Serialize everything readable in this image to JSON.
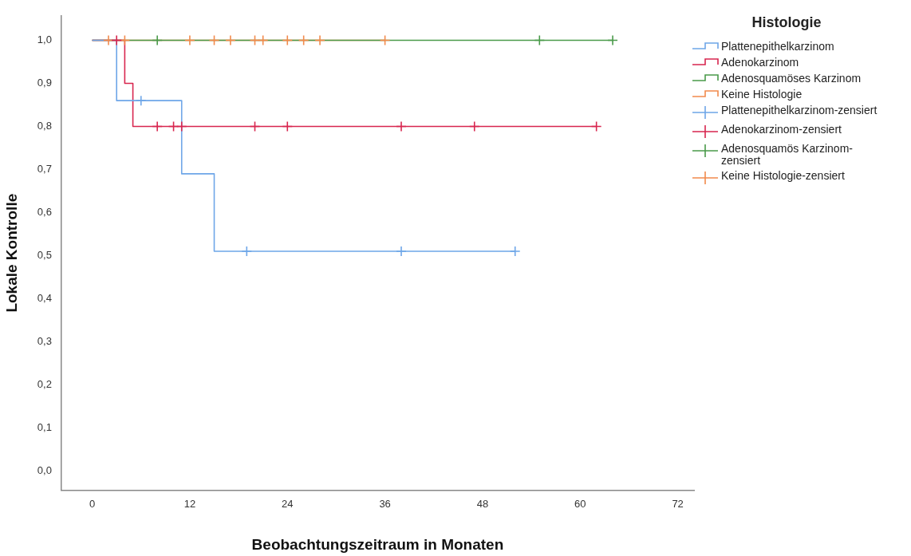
{
  "chart_data": {
    "type": "step",
    "xlabel": "Beobachtungszeitraum in Monaten",
    "ylabel": "Lokale Kontrolle",
    "legend_title": "Histologie",
    "legend": "right",
    "grid": false,
    "xlim": [
      -3.8,
      74
    ],
    "ylim": [
      -0.045,
      1.057
    ],
    "xticks": [
      0,
      12,
      24,
      36,
      48,
      60,
      72
    ],
    "yticks": [
      {
        "value": 0,
        "label": "0,0"
      },
      {
        "value": 0.1,
        "label": "0,1"
      },
      {
        "value": 0.2,
        "label": "0,2"
      },
      {
        "value": 0.3,
        "label": "0,3"
      },
      {
        "value": 0.4,
        "label": "0,4"
      },
      {
        "value": 0.5,
        "label": "0,5"
      },
      {
        "value": 0.6,
        "label": "0,6"
      },
      {
        "value": 0.7,
        "label": "0,7"
      },
      {
        "value": 0.8,
        "label": "0,8"
      },
      {
        "value": 0.9,
        "label": "0,9"
      },
      {
        "value": 1,
        "label": "1,0"
      }
    ],
    "series": [
      {
        "name": "Plattenepithelkarzinom",
        "type": "step",
        "marker": "none",
        "color": "#6ea6e8",
        "x": [
          0,
          3,
          11,
          15,
          52
        ],
        "values": [
          1,
          0.86,
          0.69,
          0.51,
          0.51
        ]
      },
      {
        "name": "Adenokarzinom",
        "type": "step",
        "marker": "none",
        "color": "#d8264f",
        "x": [
          0,
          4,
          5,
          62
        ],
        "values": [
          1,
          0.9,
          0.8,
          0.8
        ]
      },
      {
        "name": "Adenosquamöses Karzinom",
        "type": "step",
        "marker": "none",
        "color": "#4a9a4a",
        "x": [
          0,
          64
        ],
        "values": [
          1,
          1
        ]
      },
      {
        "name": "Keine Histologie",
        "type": "step",
        "marker": "none",
        "color": "#f28a4c",
        "x": [
          0,
          36
        ],
        "values": [
          1,
          1
        ]
      },
      {
        "name": "Plattenepithelkarzinom-zensiert",
        "type": "scatter",
        "marker": "cross",
        "color": "#6ea6e8",
        "x": [
          6,
          19,
          38,
          52
        ],
        "values": [
          0.86,
          0.51,
          0.51,
          0.51
        ]
      },
      {
        "name": "Adenokarzinom-zensiert",
        "type": "scatter",
        "marker": "cross",
        "color": "#d8264f",
        "x": [
          3,
          8,
          10,
          11,
          20,
          24,
          38,
          47,
          62
        ],
        "values": [
          1,
          0.8,
          0.8,
          0.8,
          0.8,
          0.8,
          0.8,
          0.8,
          0.8
        ]
      },
      {
        "name": "Adenosquamös Karzinom-zensiert",
        "type": "scatter",
        "marker": "cross",
        "color": "#4a9a4a",
        "x": [
          8,
          55,
          64
        ],
        "values": [
          1,
          1,
          1
        ]
      },
      {
        "name": "Keine Histologie-zensiert",
        "type": "scatter",
        "marker": "cross",
        "color": "#f28a4c",
        "x": [
          2,
          4,
          12,
          15,
          17,
          20,
          21,
          24,
          26,
          28,
          36
        ],
        "values": [
          1,
          1,
          1,
          1,
          1,
          1,
          1,
          1,
          1,
          1,
          1
        ]
      }
    ]
  }
}
